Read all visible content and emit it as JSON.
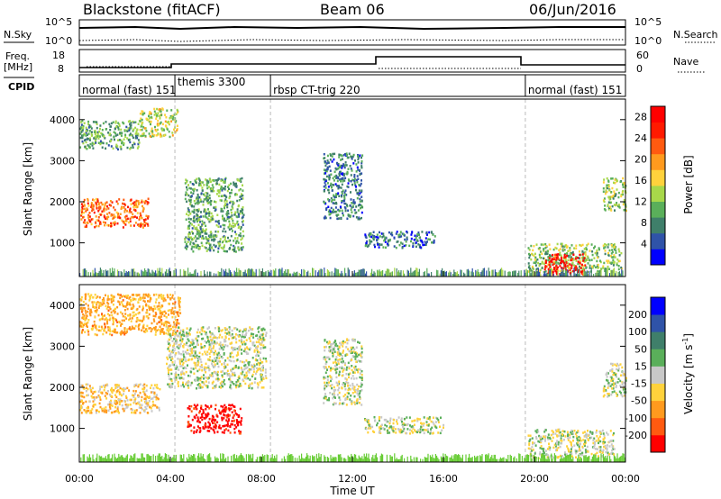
{
  "header": {
    "station": "Blackstone (fitACF)",
    "beam": "Beam 06",
    "date": "06/Jun/2016"
  },
  "noise_panel": {
    "left_label": "N.Sky",
    "right_label": "N.Search",
    "left_ticks": [
      "10^5",
      "10^0"
    ],
    "right_ticks": [
      "10^5",
      "10^0"
    ]
  },
  "freq_panel": {
    "left_label_1": "Freq.",
    "left_label_2": "[MHz]",
    "right_label": "Nave",
    "left_ticks": [
      "18",
      "8"
    ],
    "right_ticks": [
      "60",
      "0"
    ]
  },
  "cpid_panel": {
    "label": "CPID",
    "programs": [
      {
        "start_hour": 0.0,
        "name": "normal (fast) 151"
      },
      {
        "start_hour": 4.2,
        "name": "themis 3300"
      },
      {
        "start_hour": 8.4,
        "name": "rbsp CT-trig 220"
      },
      {
        "start_hour": 19.6,
        "name": "normal (fast) 151"
      }
    ]
  },
  "colors": {
    "power_scale": [
      "#0000ff",
      "#2f53a8",
      "#3f7f6a",
      "#5aaf5a",
      "#a8d84a",
      "#ffd23c",
      "#ff9a1e",
      "#ff5a10",
      "#ff1a00",
      "#ff0000"
    ],
    "velocity_scale": [
      "#ff0000",
      "#ff5a10",
      "#ff9a1e",
      "#ffd23c",
      "#c8c8c8",
      "#5aaf5a",
      "#3f7f6a",
      "#2f53a8",
      "#0000ff"
    ],
    "ground_green": "#66cc33",
    "gray": "#c8c8c8"
  },
  "chart_data": [
    {
      "type": "heatmap",
      "panel": "power",
      "title": "",
      "ylabel": "Slant Range [km]",
      "xlim": [
        0,
        24
      ],
      "ylim": [
        180,
        4500
      ],
      "yticks": [
        1000,
        2000,
        3000,
        4000
      ],
      "ytick_labels": [
        "1000",
        "2000",
        "3000",
        "4000"
      ],
      "colorbar": {
        "label": "Power [dB]",
        "ticks": [
          "4",
          "8",
          "12",
          "16",
          "20",
          "24",
          "28"
        ],
        "range": [
          0,
          30
        ]
      },
      "scatter_regions": [
        {
          "t0": 0.0,
          "t1": 3.0,
          "r0": 1400,
          "r1": 2100,
          "value": 22
        },
        {
          "t0": 0.0,
          "t1": 2.6,
          "r0": 3300,
          "r1": 4000,
          "value": 10
        },
        {
          "t0": 2.6,
          "t1": 4.3,
          "r0": 3600,
          "r1": 4300,
          "value": 14
        },
        {
          "t0": 4.6,
          "t1": 7.2,
          "r0": 800,
          "r1": 2600,
          "value": 10
        },
        {
          "t0": 10.7,
          "t1": 12.4,
          "r0": 1600,
          "r1": 3200,
          "value": 7
        },
        {
          "t0": 12.5,
          "t1": 15.6,
          "r0": 900,
          "r1": 1300,
          "value": 6
        },
        {
          "t0": 19.7,
          "t1": 23.8,
          "r0": 300,
          "r1": 1000,
          "value": 12
        },
        {
          "t0": 20.4,
          "t1": 22.2,
          "r0": 250,
          "r1": 750,
          "value": 28
        },
        {
          "t0": 23.0,
          "t1": 24.0,
          "r0": 1800,
          "r1": 2600,
          "value": 12
        }
      ]
    },
    {
      "type": "heatmap",
      "panel": "velocity",
      "title": "",
      "xlabel": "Time UT",
      "ylabel": "Slant Range [km]",
      "xlim": [
        0,
        24
      ],
      "ylim": [
        180,
        4500
      ],
      "xticks": [
        0,
        4,
        8,
        12,
        16,
        20,
        24
      ],
      "xtick_labels": [
        "00:00",
        "04:00",
        "08:00",
        "12:00",
        "16:00",
        "20:00",
        "00:00"
      ],
      "yticks": [
        1000,
        2000,
        3000,
        4000
      ],
      "ytick_labels": [
        "1000",
        "2000",
        "3000",
        "4000"
      ],
      "colorbar": {
        "label": "Velocity [m s-1]",
        "label_main": "Velocity [m s",
        "label_sup": "-1",
        "label_end": "]",
        "ticks": [
          "-200",
          "-100",
          "-50",
          "-15",
          "15",
          "50",
          "100",
          "200"
        ],
        "range": [
          -250,
          250
        ]
      },
      "scatter_regions": [
        {
          "t0": 0.0,
          "t1": 3.5,
          "r0": 1400,
          "r1": 2100,
          "value": -40
        },
        {
          "t0": 0.0,
          "t1": 4.4,
          "r0": 3300,
          "r1": 4300,
          "value": -60
        },
        {
          "t0": 4.7,
          "t1": 7.1,
          "r0": 900,
          "r1": 1600,
          "value": -230
        },
        {
          "t0": 3.8,
          "t1": 8.2,
          "r0": 2000,
          "r1": 3500,
          "value": 0
        },
        {
          "t0": 10.7,
          "t1": 12.4,
          "r0": 1600,
          "r1": 3200,
          "value": 0
        },
        {
          "t0": 12.5,
          "t1": 16.0,
          "r0": 900,
          "r1": 1300,
          "value": 0
        },
        {
          "t0": 19.7,
          "t1": 23.5,
          "r0": 300,
          "r1": 1000,
          "value": 0
        },
        {
          "t0": 23.0,
          "t1": 24.0,
          "r0": 1800,
          "r1": 2600,
          "value": 0
        }
      ]
    }
  ],
  "axis_labels": {
    "ylabel": "Slant Range [km]",
    "xlabel": "Time UT"
  }
}
